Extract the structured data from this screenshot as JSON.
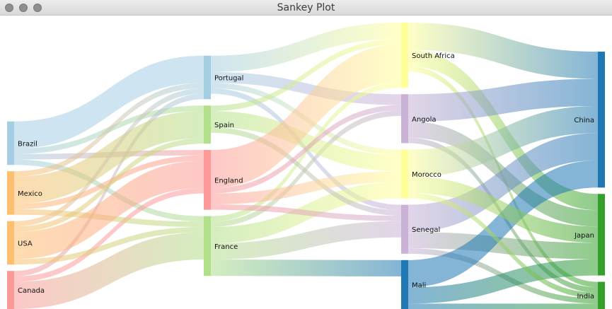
{
  "window": {
    "title": "Sankey Plot"
  },
  "chart_data": {
    "type": "sankey",
    "nodes": [
      {
        "id": "Brazil",
        "label": "Brazil",
        "column": 0,
        "color": "#a6cee3"
      },
      {
        "id": "Mexico",
        "label": "Mexico",
        "column": 0,
        "color": "#fdbf6f"
      },
      {
        "id": "USA",
        "label": "USA",
        "column": 0,
        "color": "#fdbf6f"
      },
      {
        "id": "Canada",
        "label": "Canada",
        "column": 0,
        "color": "#fb9a99"
      },
      {
        "id": "Portugal",
        "label": "Portugal",
        "column": 1,
        "color": "#a6cee3"
      },
      {
        "id": "Spain",
        "label": "Spain",
        "column": 1,
        "color": "#b2df8a"
      },
      {
        "id": "England",
        "label": "England",
        "column": 1,
        "color": "#fb9a99"
      },
      {
        "id": "France",
        "label": "France",
        "column": 1,
        "color": "#b2df8a"
      },
      {
        "id": "South Africa",
        "label": "South Africa",
        "column": 2,
        "color": "#ffff99"
      },
      {
        "id": "Angola",
        "label": "Angola",
        "column": 2,
        "color": "#cab2d6"
      },
      {
        "id": "Morocco",
        "label": "Morocco",
        "column": 2,
        "color": "#ffff99"
      },
      {
        "id": "Senegal",
        "label": "Senegal",
        "column": 2,
        "color": "#cab2d6"
      },
      {
        "id": "Mali",
        "label": "Mali",
        "column": 2,
        "color": "#1f78b4"
      },
      {
        "id": "China",
        "label": "China",
        "column": 3,
        "color": "#1f78b4"
      },
      {
        "id": "Japan",
        "label": "Japan",
        "column": 3,
        "color": "#33a02c"
      },
      {
        "id": "India",
        "label": "India",
        "column": 3,
        "color": "#33a02c"
      }
    ],
    "links": [
      {
        "source": "Brazil",
        "target": "Portugal",
        "value": 5
      },
      {
        "source": "Brazil",
        "target": "France",
        "value": 1
      },
      {
        "source": "Brazil",
        "target": "Spain",
        "value": 1
      },
      {
        "source": "Brazil",
        "target": "England",
        "value": 1
      },
      {
        "source": "Canada",
        "target": "Portugal",
        "value": 1
      },
      {
        "source": "Canada",
        "target": "France",
        "value": 5
      },
      {
        "source": "Canada",
        "target": "England",
        "value": 1
      },
      {
        "source": "Mexico",
        "target": "Portugal",
        "value": 1
      },
      {
        "source": "Mexico",
        "target": "France",
        "value": 1
      },
      {
        "source": "Mexico",
        "target": "Spain",
        "value": 5
      },
      {
        "source": "Mexico",
        "target": "England",
        "value": 1
      },
      {
        "source": "USA",
        "target": "Portugal",
        "value": 1
      },
      {
        "source": "USA",
        "target": "France",
        "value": 1
      },
      {
        "source": "USA",
        "target": "Spain",
        "value": 1
      },
      {
        "source": "USA",
        "target": "England",
        "value": 5
      },
      {
        "source": "Portugal",
        "target": "Angola",
        "value": 2
      },
      {
        "source": "Portugal",
        "target": "Senegal",
        "value": 1
      },
      {
        "source": "Portugal",
        "target": "Morocco",
        "value": 1
      },
      {
        "source": "Portugal",
        "target": "South Africa",
        "value": 3
      },
      {
        "source": "France",
        "target": "Angola",
        "value": 1
      },
      {
        "source": "France",
        "target": "Senegal",
        "value": 3
      },
      {
        "source": "France",
        "target": "Mali",
        "value": 3
      },
      {
        "source": "France",
        "target": "Morocco",
        "value": 3
      },
      {
        "source": "France",
        "target": "South Africa",
        "value": 1
      },
      {
        "source": "Spain",
        "target": "Senegal",
        "value": 1
      },
      {
        "source": "Spain",
        "target": "Morocco",
        "value": 3
      },
      {
        "source": "Spain",
        "target": "South Africa",
        "value": 1
      },
      {
        "source": "England",
        "target": "Angola",
        "value": 1
      },
      {
        "source": "England",
        "target": "Senegal",
        "value": 1
      },
      {
        "source": "England",
        "target": "Morocco",
        "value": 2
      },
      {
        "source": "England",
        "target": "South Africa",
        "value": 7
      },
      {
        "source": "South Africa",
        "target": "China",
        "value": 5
      },
      {
        "source": "South Africa",
        "target": "India",
        "value": 1
      },
      {
        "source": "South Africa",
        "target": "Japan",
        "value": 3
      },
      {
        "source": "Angola",
        "target": "China",
        "value": 5
      },
      {
        "source": "Angola",
        "target": "India",
        "value": 1
      },
      {
        "source": "Angola",
        "target": "Japan",
        "value": 3
      },
      {
        "source": "Senegal",
        "target": "China",
        "value": 5
      },
      {
        "source": "Senegal",
        "target": "India",
        "value": 1
      },
      {
        "source": "Senegal",
        "target": "Japan",
        "value": 3
      },
      {
        "source": "Mali",
        "target": "China",
        "value": 5
      },
      {
        "source": "Mali",
        "target": "India",
        "value": 1
      },
      {
        "source": "Mali",
        "target": "Japan",
        "value": 3
      },
      {
        "source": "Morocco",
        "target": "China",
        "value": 5
      },
      {
        "source": "Morocco",
        "target": "India",
        "value": 1
      },
      {
        "source": "Morocco",
        "target": "Japan",
        "value": 3
      }
    ]
  }
}
